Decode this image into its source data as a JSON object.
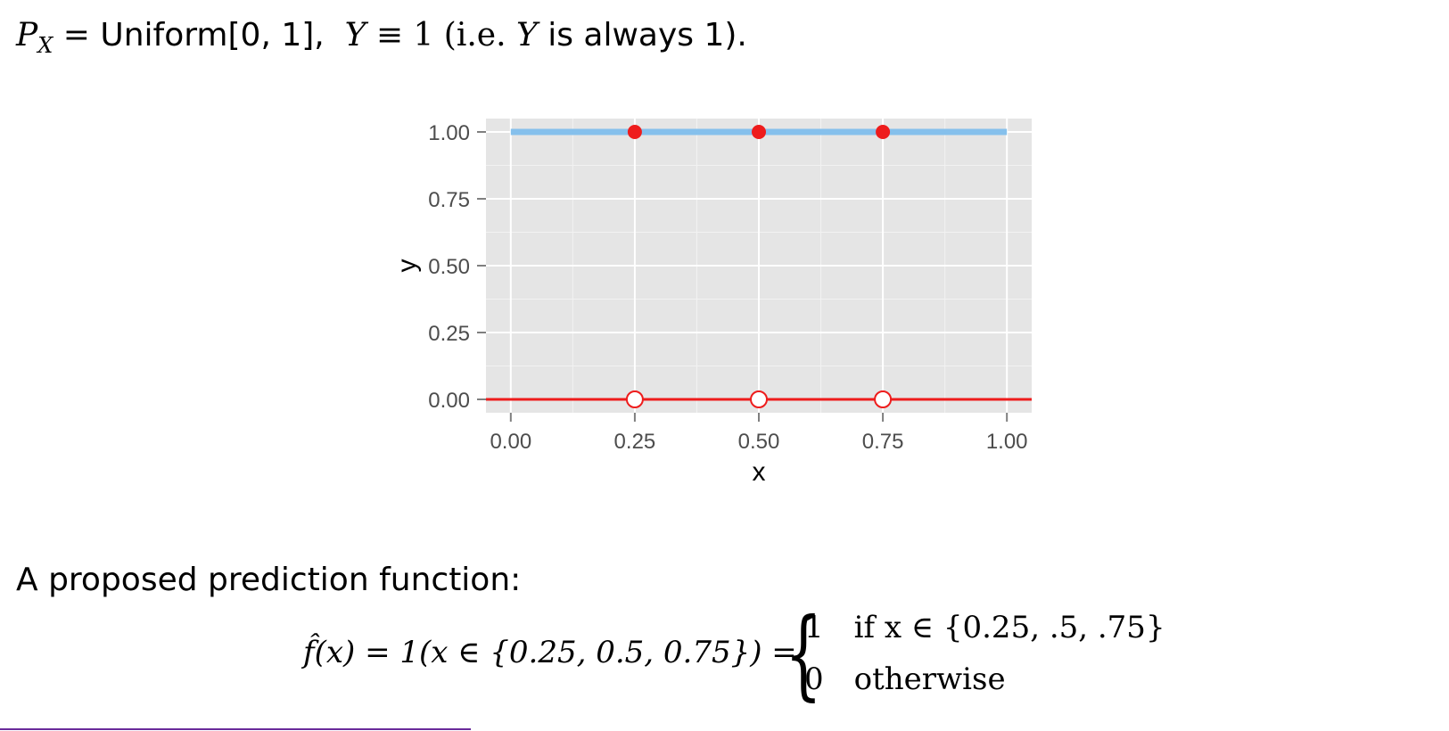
{
  "header": {
    "P": "P",
    "X_sub": "X",
    "eq": " = ",
    "uniform": "Uniform[0, 1],",
    "Y": "Y",
    "equiv": " ≡ 1 (i.e. ",
    "Y2": "Y",
    "tail": " is always 1)."
  },
  "proposal": {
    "label": "A proposed prediction function:",
    "lhs": "f̂(x) = 1(x ∈ {0.25, 0.5, 0.75}) =",
    "brace": "{",
    "case1_value": "1",
    "case1_cond": "if x ∈ {0.25, .5, .75}",
    "case2_value": "0",
    "case2_cond": "otherwise"
  },
  "chart_data": {
    "type": "line",
    "xlabel": "x",
    "ylabel": "y",
    "xlim": [
      -0.05,
      1.05
    ],
    "ylim": [
      -0.05,
      1.05
    ],
    "x_ticks": [
      0,
      0.25,
      0.5,
      0.75,
      1
    ],
    "x_tick_labels": [
      "0.00",
      "0.25",
      "0.50",
      "0.75",
      "1.00"
    ],
    "y_ticks": [
      0,
      0.25,
      0.5,
      0.75,
      1
    ],
    "y_tick_labels": [
      "0.00",
      "0.25",
      "0.50",
      "0.75",
      "1.00"
    ],
    "grid": true,
    "background": "#e5e5e5",
    "series": [
      {
        "style": "line",
        "color": "#85c0ec",
        "x": [
          0,
          1
        ],
        "y": [
          1,
          1
        ]
      },
      {
        "style": "line",
        "color": "#ee1c1c",
        "x": [
          -0.05,
          1.05
        ],
        "y": [
          0,
          0
        ]
      },
      {
        "style": "points-filled",
        "color": "#ee1c1c",
        "x": [
          0.25,
          0.5,
          0.75
        ],
        "y": [
          1,
          1,
          1
        ]
      },
      {
        "style": "points-open",
        "color": "#ee1c1c",
        "x": [
          0.25,
          0.5,
          0.75
        ],
        "y": [
          0,
          0,
          0
        ]
      }
    ]
  }
}
